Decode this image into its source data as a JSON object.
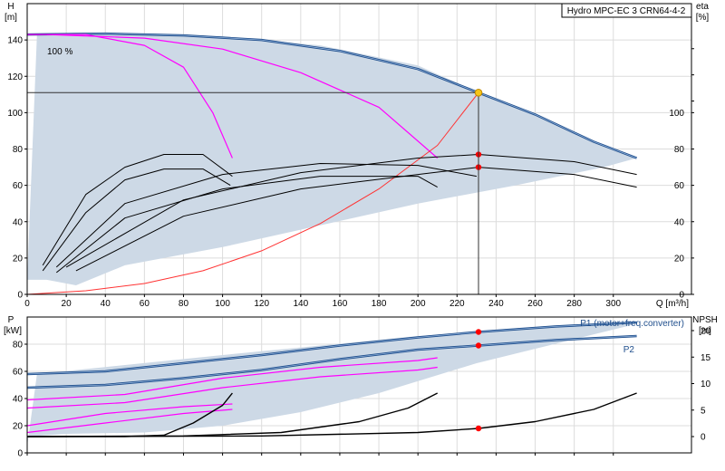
{
  "title": "Hydro MPC-EC 3 CRN64-4-2",
  "colors": {
    "area": "#cdd9e6",
    "main": "#1f4e8c",
    "magenta": "#ff00ff",
    "black": "#000000",
    "system": "#ff3333",
    "dot": "#ff0000",
    "op": "#f5c518",
    "grid": "#dcdcdc"
  },
  "chart_data": [
    {
      "type": "line",
      "panel": "head",
      "ylabel_left": "H\n[m]",
      "ylabel_right": "eta\n[%]",
      "xlabel": "Q [m³/h]",
      "xlim": [
        0,
        340
      ],
      "ylim": [
        0,
        160
      ],
      "x_ticks": [
        0,
        20,
        40,
        60,
        80,
        100,
        120,
        140,
        160,
        180,
        200,
        220,
        240,
        260,
        280,
        300
      ],
      "y_ticks": [
        0,
        20,
        40,
        60,
        80,
        100,
        120,
        140
      ],
      "y_ticks_right": [
        0,
        20,
        40,
        60,
        80,
        100
      ],
      "annotation": "100 %",
      "operating_point": {
        "x": 231,
        "y": 111
      },
      "series": [
        {
          "role": "area",
          "points": [
            [
              0,
              8
            ],
            [
              5,
              143
            ],
            [
              25,
              144
            ],
            [
              60,
              143.5
            ],
            [
              100,
              142
            ],
            [
              150,
              137
            ],
            [
              200,
              126
            ],
            [
              231,
              111
            ],
            [
              260,
              99
            ],
            [
              290,
              84
            ],
            [
              312,
              75
            ],
            [
              312,
              75
            ],
            [
              295,
              70
            ],
            [
              250,
              60
            ],
            [
              200,
              50
            ],
            [
              150,
              38
            ],
            [
              100,
              26
            ],
            [
              50,
              16
            ],
            [
              25,
              5
            ],
            [
              10,
              8
            ]
          ]
        },
        {
          "role": "main",
          "points": [
            [
              0,
              143
            ],
            [
              40,
              143.5
            ],
            [
              80,
              142.5
            ],
            [
              120,
              140
            ],
            [
              160,
              134
            ],
            [
              200,
              124
            ],
            [
              231,
              111
            ],
            [
              260,
              99
            ],
            [
              290,
              84
            ],
            [
              312,
              75
            ]
          ]
        },
        {
          "role": "magenta",
          "points": [
            [
              0,
              143
            ],
            [
              30,
              143
            ],
            [
              60,
              137
            ],
            [
              80,
              125
            ],
            [
              95,
              100
            ],
            [
              105,
              75
            ]
          ]
        },
        {
          "role": "magenta",
          "points": [
            [
              10,
              143
            ],
            [
              60,
              141
            ],
            [
              100,
              135
            ],
            [
              140,
              122
            ],
            [
              180,
              103
            ],
            [
              210,
              75
            ]
          ]
        },
        {
          "role": "system",
          "points": [
            [
              0,
              0
            ],
            [
              30,
              2
            ],
            [
              60,
              6
            ],
            [
              90,
              13
            ],
            [
              120,
              24
            ],
            [
              150,
              39
            ],
            [
              180,
              58
            ],
            [
              210,
              82
            ],
            [
              231,
              111
            ]
          ]
        },
        {
          "role": "eta",
          "points": [
            [
              8,
              16
            ],
            [
              30,
              55
            ],
            [
              50,
              70
            ],
            [
              70,
              77
            ],
            [
              90,
              77
            ],
            [
              105,
              65
            ]
          ]
        },
        {
          "role": "eta",
          "points": [
            [
              8,
              13
            ],
            [
              30,
              45
            ],
            [
              50,
              63
            ],
            [
              70,
              69
            ],
            [
              90,
              69
            ],
            [
              104,
              60
            ]
          ]
        },
        {
          "role": "eta",
          "points": [
            [
              15,
              15
            ],
            [
              50,
              50
            ],
            [
              100,
              66
            ],
            [
              150,
              72
            ],
            [
              200,
              71
            ],
            [
              230,
              65
            ]
          ]
        },
        {
          "role": "eta",
          "points": [
            [
              15,
              12
            ],
            [
              50,
              42
            ],
            [
              100,
              58
            ],
            [
              150,
              65
            ],
            [
              200,
              65
            ],
            [
              210,
              59
            ]
          ]
        },
        {
          "role": "eta",
          "points": [
            [
              20,
              15
            ],
            [
              80,
              52
            ],
            [
              140,
              67
            ],
            [
              200,
              75
            ],
            [
              231,
              77
            ],
            [
              280,
              73
            ],
            [
              312,
              66
            ]
          ]
        },
        {
          "role": "eta",
          "points": [
            [
              25,
              13
            ],
            [
              80,
              43
            ],
            [
              140,
              58
            ],
            [
              200,
              66
            ],
            [
              231,
              70
            ],
            [
              280,
              66
            ],
            [
              312,
              59
            ]
          ]
        }
      ],
      "markers": [
        {
          "x": 231,
          "y": 77
        },
        {
          "x": 231,
          "y": 70
        }
      ]
    },
    {
      "type": "line",
      "panel": "power",
      "ylabel_left": "P\n[kW]",
      "ylabel_right": "NPSH\n[m]",
      "ylim": [
        0,
        100
      ],
      "y_ticks": [
        0,
        20,
        40,
        60,
        80
      ],
      "y_ticks_right": [
        0,
        5,
        10,
        15,
        20
      ],
      "legend": [
        "P1 (motor+freq.converter)",
        "P2"
      ],
      "series": [
        {
          "role": "area",
          "points": [
            [
              0,
              5
            ],
            [
              5,
              58
            ],
            [
              100,
              72
            ],
            [
              200,
              86
            ],
            [
              231,
              89
            ],
            [
              312,
              96
            ],
            [
              312,
              95
            ],
            [
              230,
              66
            ],
            [
              180,
              44
            ],
            [
              140,
              30
            ],
            [
              100,
              20
            ],
            [
              60,
              15
            ],
            [
              20,
              14
            ],
            [
              0,
              12
            ]
          ]
        },
        {
          "role": "main",
          "points": [
            [
              0,
              58
            ],
            [
              40,
              60
            ],
            [
              80,
              66
            ],
            [
              120,
              72
            ],
            [
              160,
              79
            ],
            [
              200,
              85
            ],
            [
              231,
              89
            ],
            [
              270,
              93
            ],
            [
              312,
              96
            ]
          ]
        },
        {
          "role": "main",
          "points": [
            [
              0,
              48
            ],
            [
              40,
              50
            ],
            [
              80,
              55
            ],
            [
              120,
              61
            ],
            [
              160,
              69
            ],
            [
              200,
              76
            ],
            [
              231,
              79
            ],
            [
              270,
              83
            ],
            [
              312,
              86
            ]
          ]
        },
        {
          "role": "magenta",
          "points": [
            [
              0,
              39
            ],
            [
              50,
              43
            ],
            [
              100,
              55
            ],
            [
              150,
              63
            ],
            [
              200,
              68
            ],
            [
              210,
              70
            ]
          ]
        },
        {
          "role": "magenta",
          "points": [
            [
              0,
              33
            ],
            [
              50,
              37
            ],
            [
              100,
              48
            ],
            [
              150,
              56
            ],
            [
              200,
              61
            ],
            [
              210,
              63
            ]
          ]
        },
        {
          "role": "magenta",
          "points": [
            [
              0,
              20
            ],
            [
              40,
              29
            ],
            [
              80,
              34
            ],
            [
              105,
              36
            ]
          ]
        },
        {
          "role": "magenta",
          "points": [
            [
              0,
              15
            ],
            [
              40,
              22
            ],
            [
              80,
              29
            ],
            [
              105,
              32
            ]
          ]
        },
        {
          "role": "black",
          "points": [
            [
              0,
              12
            ],
            [
              50,
              12
            ],
            [
              70,
              13
            ],
            [
              85,
              22
            ],
            [
              100,
              35
            ],
            [
              105,
              44
            ]
          ]
        },
        {
          "role": "black",
          "points": [
            [
              0,
              12
            ],
            [
              80,
              12.5
            ],
            [
              130,
              15
            ],
            [
              170,
              23
            ],
            [
              195,
              33
            ],
            [
              210,
              44
            ]
          ]
        },
        {
          "role": "black",
          "points": [
            [
              0,
              12
            ],
            [
              120,
              12.5
            ],
            [
              200,
              15
            ],
            [
              231,
              18
            ],
            [
              260,
              23
            ],
            [
              290,
              32
            ],
            [
              312,
              44
            ]
          ]
        }
      ],
      "markers": [
        {
          "x": 231,
          "y": 89
        },
        {
          "x": 231,
          "y": 79
        },
        {
          "x": 231,
          "y": 18
        }
      ]
    }
  ]
}
